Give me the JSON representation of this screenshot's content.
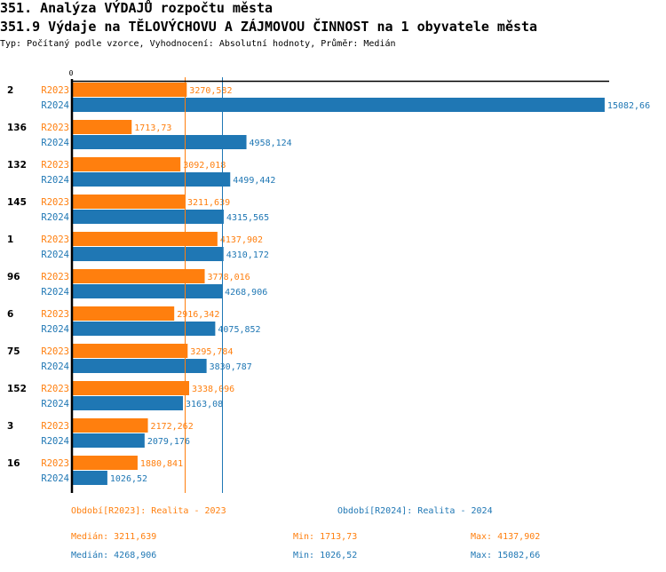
{
  "header": {
    "title": "351. Analýza VÝDAJŮ rozpočtu města",
    "subtitle": "351.9 Výdaje na TĚLOVÝCHOVU A ZÁJMOVOU ČINNOST na 1 obyvatele města",
    "meta": "Typ: Počítaný podle vzorce, Vyhodnocení: Absolutní hodnoty, Průměr: Medián"
  },
  "chart_data": {
    "type": "bar",
    "orientation": "horizontal",
    "title": "351.9 Výdaje na TĚLOVÝCHOVU A ZÁJMOVOU ČINNOST na 1 obyvatele města",
    "xlabel": "",
    "ylabel": "",
    "xlim": [
      0,
      15210
    ],
    "x_tick_labels": [
      "0"
    ],
    "grid": false,
    "categories": [
      "2",
      "136",
      "132",
      "145",
      "1",
      "96",
      "6",
      "75",
      "152",
      "3",
      "16"
    ],
    "series": [
      {
        "name": "R2023",
        "color": "#ff7f0e",
        "values": [
          3270.582,
          1713.73,
          3092.018,
          3211.639,
          4137.902,
          3778.016,
          2916.342,
          3295.784,
          3338.096,
          2172.262,
          1880.841
        ],
        "labels": [
          "3270,582",
          "1713,73",
          "3092,018",
          "3211,639",
          "4137,902",
          "3778,016",
          "2916,342",
          "3295,784",
          "3338,096",
          "2172,262",
          "1880,841"
        ]
      },
      {
        "name": "R2024",
        "color": "#1f77b4",
        "values": [
          15082.66,
          4958.124,
          4499.442,
          4315.565,
          4310.172,
          4268.906,
          4075.852,
          3830.787,
          3163.08,
          2079.176,
          1026.52
        ],
        "labels": [
          "15082,66",
          "4958,124",
          "4499,442",
          "4315,565",
          "4310,172",
          "4268,906",
          "4075,852",
          "3830,787",
          "3163,08",
          "2079,176",
          "1026,52"
        ]
      }
    ],
    "reference_lines": [
      {
        "series": "R2023",
        "kind": "median",
        "value": 3211.639,
        "color": "#ff7f0e"
      },
      {
        "series": "R2024",
        "kind": "median",
        "value": 4268.906,
        "color": "#1f77b4"
      }
    ],
    "legend": [
      {
        "label": "Období[R2023]: Realita - 2023",
        "color": "#ff7f0e"
      },
      {
        "label": "Období[R2024]: Realita - 2024",
        "color": "#1f77b4"
      }
    ],
    "legend_position": "bottom"
  },
  "summary": {
    "r2023": {
      "median": "Medián: 3211,639",
      "min": "Min: 1713,73",
      "max": "Max: 4137,902"
    },
    "r2024": {
      "median": "Medián: 4268,906",
      "min": "Min: 1026,52",
      "max": "Max: 15082,66"
    }
  }
}
